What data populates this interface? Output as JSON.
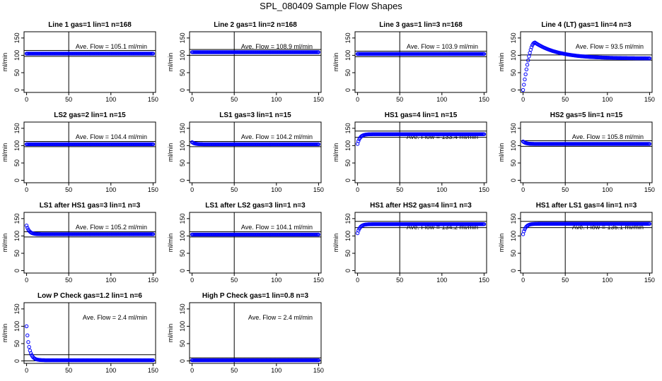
{
  "title": "SPL_080409  Sample Flow Shapes",
  "colors": {
    "points": "#0000ff",
    "axes": "#000000",
    "background": "#ffffff"
  },
  "chart_data": [
    {
      "type": "scatter",
      "title": "Line 1 gas=1 lin=1 n=168",
      "ylabel": "ml/min",
      "xlim": [
        0,
        150
      ],
      "ylim": [
        0,
        150
      ],
      "xticks": [
        0,
        50,
        100,
        150
      ],
      "yticks": [
        0,
        50,
        100,
        150
      ],
      "vline": 50,
      "hlines": [
        97,
        114
      ],
      "annotation": "Ave. Flow =  105.1  ml/min",
      "shape": {
        "kind": "flat",
        "start": 105,
        "plateau": 105
      }
    },
    {
      "type": "scatter",
      "title": "Line 2 gas=1 lin=2 n=168",
      "ylabel": "ml/min",
      "xlim": [
        0,
        150
      ],
      "ylim": [
        0,
        150
      ],
      "xticks": [
        0,
        50,
        100,
        150
      ],
      "yticks": [
        0,
        50,
        100,
        150
      ],
      "vline": 50,
      "hlines": [
        100,
        117
      ],
      "annotation": "Ave. Flow =  108.9  ml/min",
      "shape": {
        "kind": "flat",
        "start": 104,
        "plateau": 109
      }
    },
    {
      "type": "scatter",
      "title": "Line 3 gas=1 lin=3 n=168",
      "ylabel": "ml/min",
      "xlim": [
        0,
        150
      ],
      "ylim": [
        0,
        150
      ],
      "xticks": [
        0,
        50,
        100,
        150
      ],
      "yticks": [
        0,
        50,
        100,
        150
      ],
      "vline": 50,
      "hlines": [
        96,
        112
      ],
      "annotation": "Ave. Flow =  103.9  ml/min",
      "shape": {
        "kind": "flat",
        "start": 104,
        "plateau": 104
      }
    },
    {
      "type": "scatter",
      "title": "Line 4 (LT) gas=1 lin=4 n=3",
      "ylabel": "ml/min",
      "xlim": [
        0,
        150
      ],
      "ylim": [
        0,
        150
      ],
      "xticks": [
        0,
        50,
        100,
        150
      ],
      "yticks": [
        0,
        50,
        100,
        150
      ],
      "vline": 50,
      "hlines": [
        86,
        101
      ],
      "annotation": "Ave. Flow =  93.5  ml/min",
      "shape": {
        "kind": "peak",
        "start": 0,
        "peak": 137,
        "peak_x": 14,
        "plateau": 91
      }
    },
    {
      "type": "scatter",
      "title": "LS2 gas=2 lin=1 n=15",
      "ylabel": "ml/min",
      "xlim": [
        0,
        150
      ],
      "ylim": [
        0,
        150
      ],
      "xticks": [
        0,
        50,
        100,
        150
      ],
      "yticks": [
        0,
        50,
        100,
        150
      ],
      "vline": 50,
      "hlines": [
        97,
        112
      ],
      "annotation": "Ave. Flow =  104.4  ml/min",
      "shape": {
        "kind": "flat",
        "start": 104,
        "plateau": 104
      }
    },
    {
      "type": "scatter",
      "title": "LS1 gas=3 lin=1 n=15",
      "ylabel": "ml/min",
      "xlim": [
        0,
        150
      ],
      "ylim": [
        0,
        150
      ],
      "xticks": [
        0,
        50,
        100,
        150
      ],
      "yticks": [
        0,
        50,
        100,
        150
      ],
      "vline": 50,
      "hlines": [
        97,
        112
      ],
      "annotation": "Ave. Flow =  104.2  ml/min",
      "shape": {
        "kind": "decay",
        "start": 110,
        "plateau": 104
      }
    },
    {
      "type": "scatter",
      "title": "HS1 gas=4 lin=1 n=15",
      "ylabel": "ml/min",
      "xlim": [
        0,
        150
      ],
      "ylim": [
        0,
        150
      ],
      "xticks": [
        0,
        50,
        100,
        150
      ],
      "yticks": [
        0,
        50,
        100,
        150
      ],
      "vline": 50,
      "hlines": [
        124,
        142
      ],
      "annotation": "Ave. Flow =  133.4  ml/min",
      "shape": {
        "kind": "rise",
        "start": 105,
        "plateau": 133
      }
    },
    {
      "type": "scatter",
      "title": "HS2 gas=5 lin=1 n=15",
      "ylabel": "ml/min",
      "xlim": [
        0,
        150
      ],
      "ylim": [
        0,
        150
      ],
      "xticks": [
        0,
        50,
        100,
        150
      ],
      "yticks": [
        0,
        50,
        100,
        150
      ],
      "vline": 50,
      "hlines": [
        98,
        114
      ],
      "annotation": "Ave. Flow =  105.8  ml/min",
      "shape": {
        "kind": "decay",
        "start": 112,
        "plateau": 105
      }
    },
    {
      "type": "scatter",
      "title": "LS1 after HS1 gas=3 lin=1 n=3",
      "ylabel": "ml/min",
      "xlim": [
        0,
        150
      ],
      "ylim": [
        0,
        150
      ],
      "xticks": [
        0,
        50,
        100,
        150
      ],
      "yticks": [
        0,
        50,
        100,
        150
      ],
      "vline": 50,
      "hlines": [
        97,
        112
      ],
      "annotation": "Ave. Flow =  105.2  ml/min",
      "shape": {
        "kind": "decay",
        "start": 130,
        "plateau": 105
      }
    },
    {
      "type": "scatter",
      "title": "LS1 after LS2 gas=3 lin=1 n=3",
      "ylabel": "ml/min",
      "xlim": [
        0,
        150
      ],
      "ylim": [
        0,
        150
      ],
      "xticks": [
        0,
        50,
        100,
        150
      ],
      "yticks": [
        0,
        50,
        100,
        150
      ],
      "vline": 50,
      "hlines": [
        97,
        112
      ],
      "annotation": "Ave. Flow =  104.1  ml/min",
      "shape": {
        "kind": "flat",
        "start": 104,
        "plateau": 104
      }
    },
    {
      "type": "scatter",
      "title": "HS1 after HS2 gas=4 lin=1 n=3",
      "ylabel": "ml/min",
      "xlim": [
        0,
        150
      ],
      "ylim": [
        0,
        150
      ],
      "xticks": [
        0,
        50,
        100,
        150
      ],
      "yticks": [
        0,
        50,
        100,
        150
      ],
      "vline": 50,
      "hlines": [
        124,
        142
      ],
      "annotation": "Ave. Flow =  134.2  ml/min",
      "shape": {
        "kind": "rise",
        "start": 108,
        "plateau": 134
      }
    },
    {
      "type": "scatter",
      "title": "HS1 after LS1 gas=4 lin=1 n=3",
      "ylabel": "ml/min",
      "xlim": [
        0,
        150
      ],
      "ylim": [
        0,
        150
      ],
      "xticks": [
        0,
        50,
        100,
        150
      ],
      "yticks": [
        0,
        50,
        100,
        150
      ],
      "vline": 50,
      "hlines": [
        124,
        142
      ],
      "annotation": "Ave. Flow =  135.1  ml/min",
      "shape": {
        "kind": "rise",
        "start": 105,
        "plateau": 135
      }
    },
    {
      "type": "scatter",
      "title": "Low P Check gas=1.2 lin=1 n=6",
      "ylabel": "ml/min",
      "xlim": [
        0,
        150
      ],
      "ylim": [
        0,
        150
      ],
      "xticks": [
        0,
        50,
        100,
        150
      ],
      "yticks": [
        0,
        50,
        100,
        150
      ],
      "vline": 50,
      "hlines": [
        0,
        18
      ],
      "annotation": "Ave. Flow =  2.4  ml/min",
      "shape": {
        "kind": "decay",
        "start": 100,
        "plateau": 2
      }
    },
    {
      "type": "scatter",
      "title": "High P Check gas=1 lin=0.8 n=3",
      "ylabel": "ml/min",
      "xlim": [
        0,
        150
      ],
      "ylim": [
        0,
        150
      ],
      "xticks": [
        0,
        50,
        100,
        150
      ],
      "yticks": [
        0,
        50,
        100,
        150
      ],
      "vline": 50,
      "hlines": [
        0,
        9
      ],
      "annotation": "Ave. Flow =  2.4  ml/min",
      "shape": {
        "kind": "flat",
        "start": 2,
        "plateau": 2
      }
    }
  ]
}
